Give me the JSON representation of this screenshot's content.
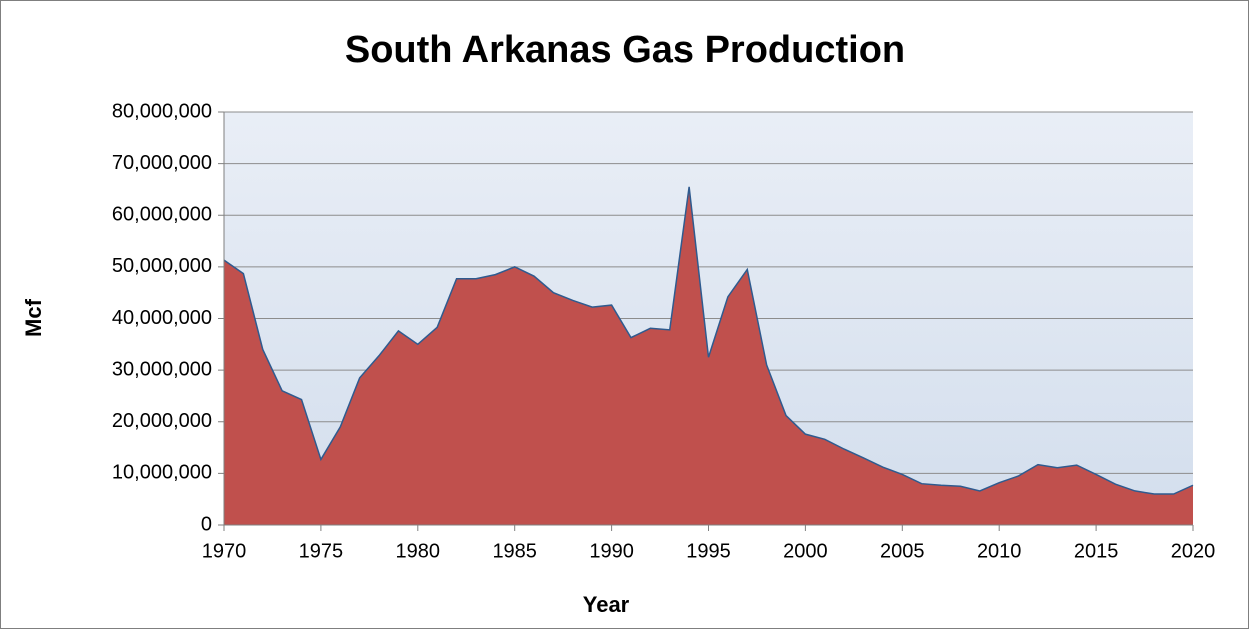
{
  "chart_data": {
    "type": "area",
    "title": "South Arkanas Gas Production",
    "x_label": "Year",
    "y_label": "Mcf",
    "x": [
      1970,
      1971,
      1972,
      1973,
      1974,
      1975,
      1976,
      1977,
      1978,
      1979,
      1980,
      1981,
      1982,
      1983,
      1984,
      1985,
      1986,
      1987,
      1988,
      1989,
      1990,
      1991,
      1992,
      1993,
      1994,
      1995,
      1996,
      1997,
      1998,
      1999,
      2000,
      2001,
      2002,
      2003,
      2004,
      2005,
      2006,
      2007,
      2008,
      2009,
      2010,
      2011,
      2012,
      2013,
      2014,
      2015,
      2016,
      2017,
      2018,
      2019,
      2020
    ],
    "values": [
      51300000,
      48700000,
      34000000,
      26000000,
      24300000,
      12700000,
      19000000,
      28500000,
      32800000,
      37600000,
      35000000,
      38300000,
      47700000,
      47700000,
      48500000,
      50000000,
      48200000,
      45000000,
      43500000,
      42200000,
      42600000,
      36300000,
      38100000,
      37800000,
      65500000,
      32500000,
      44200000,
      49500000,
      31000000,
      21200000,
      17600000,
      16600000,
      14700000,
      13000000,
      11200000,
      9800000,
      8000000,
      7700000,
      7500000,
      6600000,
      8200000,
      9500000,
      11700000,
      11100000,
      11600000,
      9800000,
      7900000,
      6600000,
      6000000,
      6000000,
      7700000
    ],
    "color": "#c0504d",
    "line_color": "#2f5b8f",
    "xlim": [
      1970,
      2020
    ],
    "xticks": [
      1970,
      1975,
      1980,
      1985,
      1990,
      1995,
      2000,
      2005,
      2010,
      2015,
      2020
    ],
    "ylim": [
      0,
      80000000
    ],
    "yticks": [
      0,
      {
        "value": 10000000,
        "label": "10,000,000"
      },
      {
        "value": 20000000,
        "label": "20,000,000"
      },
      {
        "value": 30000000,
        "label": "30,000,000"
      },
      {
        "value": 40000000,
        "label": "40,000,000"
      },
      {
        "value": 50000000,
        "label": "50,000,000"
      },
      {
        "value": 60000000,
        "label": "60,000,000"
      },
      {
        "value": 70000000,
        "label": "70,000,000"
      },
      {
        "value": 80000000,
        "label": "80,000,000"
      }
    ],
    "grid": true
  }
}
